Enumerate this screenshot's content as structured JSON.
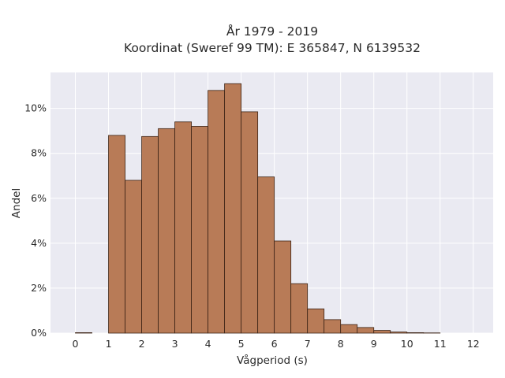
{
  "chart_data": {
    "type": "bar",
    "title": [
      "År 1979 - 2019",
      "Koordinat (Sweref 99 TM): E 365847, N 6139532"
    ],
    "xlabel": "Vågperiod (s)",
    "ylabel": "Andel",
    "xlim": [
      -0.75,
      12.6
    ],
    "ylim": [
      0,
      11.6
    ],
    "xticks": [
      0,
      1,
      2,
      3,
      4,
      5,
      6,
      7,
      8,
      9,
      10,
      11,
      12
    ],
    "yticks": [
      0,
      2,
      4,
      6,
      8,
      10
    ],
    "ytick_suffix": "%",
    "bin_width": 0.5,
    "bin_starts": [
      0,
      1,
      1.5,
      2,
      2.5,
      3,
      3.5,
      4,
      4.5,
      5,
      5.5,
      6,
      6.5,
      7,
      7.5,
      8,
      8.5,
      9,
      9.5,
      10,
      10.5
    ],
    "values": [
      0.02,
      8.8,
      6.8,
      8.75,
      9.1,
      9.4,
      9.2,
      10.8,
      11.1,
      9.85,
      6.95,
      4.1,
      2.2,
      1.08,
      0.6,
      0.38,
      0.25,
      0.12,
      0.05,
      0.02,
      0.01
    ],
    "grid": true,
    "colors": {
      "bar": "#b87b57",
      "bar_edge": "#3d2416",
      "plot_bg": "#eaeaf2",
      "grid": "#ffffff"
    }
  }
}
